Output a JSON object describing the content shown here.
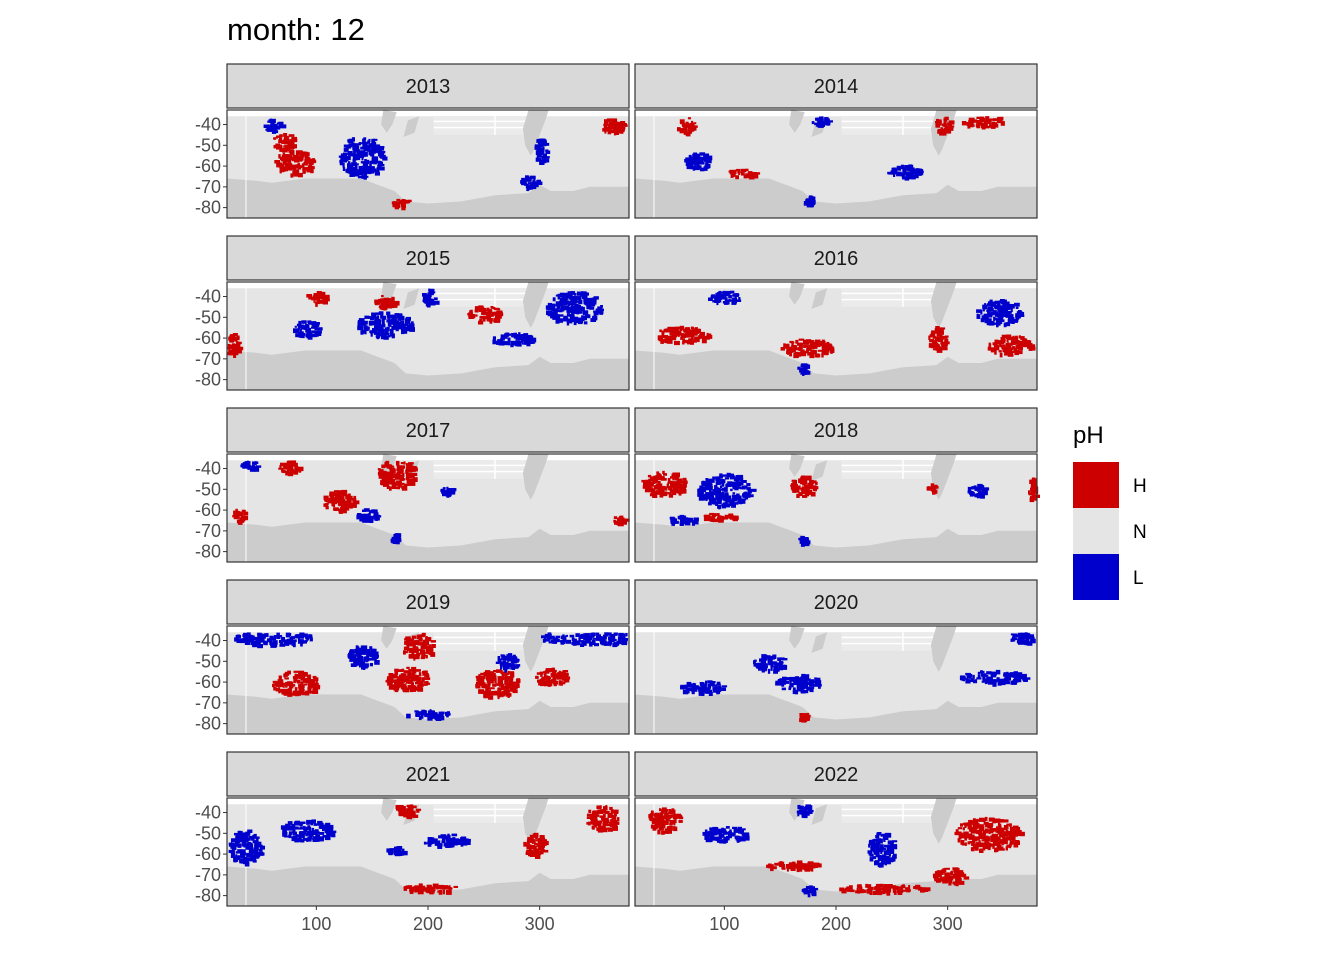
{
  "chart_data": {
    "type": "heatmap",
    "title": "month: 12",
    "facet_variable": "year",
    "facets": [
      "2013",
      "2014",
      "2015",
      "2016",
      "2017",
      "2018",
      "2019",
      "2020",
      "2021",
      "2022"
    ],
    "x_ticks": [
      100,
      200,
      300
    ],
    "x_tick_labels": [
      "100",
      "200",
      "300"
    ],
    "xlim": [
      20,
      380
    ],
    "y_ticks": [
      -40,
      -50,
      -60,
      -70,
      -80
    ],
    "y_tick_labels": [
      "-40",
      "-50",
      "-60",
      "-70",
      "-80"
    ],
    "ylim": [
      -85,
      -33
    ],
    "xlabel": "",
    "ylabel": "",
    "legend": {
      "title": "pH",
      "position": "right",
      "entries": [
        {
          "label": "H",
          "color": "#cc0000"
        },
        {
          "label": "N",
          "color": "#e5e5e5"
        },
        {
          "label": "L",
          "color": "#0000cc"
        }
      ]
    },
    "colors": {
      "land": "#cccccc",
      "normal": "#e5e5e5",
      "high": "#cc0000",
      "low": "#0000cc",
      "strip_fill": "#d9d9d9",
      "strip_border": "#333333"
    },
    "anomaly_regions": {
      "2013": [
        {
          "cls": "H",
          "lon": 80,
          "lat": -58,
          "rlon": 18,
          "rlat": 6
        },
        {
          "cls": "H",
          "lon": 70,
          "lat": -48,
          "rlon": 10,
          "rlat": 4
        },
        {
          "cls": "H",
          "lon": 175,
          "lat": -77,
          "rlon": 8,
          "rlat": 2
        },
        {
          "cls": "H",
          "lon": 365,
          "lat": -40,
          "rlon": 10,
          "rlat": 4
        },
        {
          "cls": "L",
          "lon": 140,
          "lat": -55,
          "rlon": 20,
          "rlat": 10
        },
        {
          "cls": "L",
          "lon": 300,
          "lat": -52,
          "rlon": 6,
          "rlat": 6
        },
        {
          "cls": "L",
          "lon": 290,
          "lat": -67,
          "rlon": 8,
          "rlat": 3
        },
        {
          "cls": "L",
          "lon": 60,
          "lat": -40,
          "rlon": 8,
          "rlat": 3
        }
      ],
      "2014": [
        {
          "cls": "H",
          "lon": 65,
          "lat": -40,
          "rlon": 8,
          "rlat": 4
        },
        {
          "cls": "H",
          "lon": 295,
          "lat": -40,
          "rlon": 8,
          "rlat": 4
        },
        {
          "cls": "H",
          "lon": 330,
          "lat": -38,
          "rlon": 18,
          "rlat": 3
        },
        {
          "cls": "H",
          "lon": 115,
          "lat": -63,
          "rlon": 14,
          "rlat": 2
        },
        {
          "cls": "L",
          "lon": 75,
          "lat": -57,
          "rlon": 12,
          "rlat": 4
        },
        {
          "cls": "L",
          "lon": 185,
          "lat": -38,
          "rlon": 8,
          "rlat": 2
        },
        {
          "cls": "L",
          "lon": 175,
          "lat": -76,
          "rlon": 5,
          "rlat": 2
        },
        {
          "cls": "L",
          "lon": 260,
          "lat": -62,
          "rlon": 15,
          "rlat": 3
        }
      ],
      "2015": [
        {
          "cls": "H",
          "lon": 250,
          "lat": -48,
          "rlon": 15,
          "rlat": 4
        },
        {
          "cls": "H",
          "lon": 25,
          "lat": -63,
          "rlon": 6,
          "rlat": 6
        },
        {
          "cls": "H",
          "lon": 100,
          "lat": -40,
          "rlon": 10,
          "rlat": 3
        },
        {
          "cls": "H",
          "lon": 160,
          "lat": -42,
          "rlon": 10,
          "rlat": 3
        },
        {
          "cls": "L",
          "lon": 160,
          "lat": -53,
          "rlon": 25,
          "rlat": 6
        },
        {
          "cls": "L",
          "lon": 200,
          "lat": -40,
          "rlon": 6,
          "rlat": 4
        },
        {
          "cls": "L",
          "lon": 275,
          "lat": -60,
          "rlon": 18,
          "rlat": 3
        },
        {
          "cls": "L",
          "lon": 330,
          "lat": -45,
          "rlon": 25,
          "rlat": 8
        },
        {
          "cls": "L",
          "lon": 90,
          "lat": -55,
          "rlon": 12,
          "rlat": 4
        }
      ],
      "2016": [
        {
          "cls": "H",
          "lon": 60,
          "lat": -58,
          "rlon": 25,
          "rlat": 4
        },
        {
          "cls": "H",
          "lon": 175,
          "lat": -64,
          "rlon": 25,
          "rlat": 4
        },
        {
          "cls": "H",
          "lon": 355,
          "lat": -63,
          "rlon": 20,
          "rlat": 5
        },
        {
          "cls": "H",
          "lon": 290,
          "lat": -60,
          "rlon": 8,
          "rlat": 6
        },
        {
          "cls": "L",
          "lon": 345,
          "lat": -47,
          "rlon": 20,
          "rlat": 6
        },
        {
          "cls": "L",
          "lon": 170,
          "lat": -74,
          "rlon": 5,
          "rlat": 2
        },
        {
          "cls": "L",
          "lon": 100,
          "lat": -40,
          "rlon": 15,
          "rlat": 3
        }
      ],
      "2017": [
        {
          "cls": "H",
          "lon": 170,
          "lat": -42,
          "rlon": 18,
          "rlat": 7
        },
        {
          "cls": "H",
          "lon": 75,
          "lat": -39,
          "rlon": 10,
          "rlat": 3
        },
        {
          "cls": "H",
          "lon": 30,
          "lat": -62,
          "rlon": 6,
          "rlat": 3
        },
        {
          "cls": "H",
          "lon": 370,
          "lat": -64,
          "rlon": 6,
          "rlat": 2
        },
        {
          "cls": "H",
          "lon": 120,
          "lat": -55,
          "rlon": 15,
          "rlat": 5
        },
        {
          "cls": "L",
          "lon": 40,
          "lat": -38,
          "rlon": 8,
          "rlat": 2
        },
        {
          "cls": "L",
          "lon": 215,
          "lat": -50,
          "rlon": 6,
          "rlat": 2
        },
        {
          "cls": "L",
          "lon": 145,
          "lat": -62,
          "rlon": 10,
          "rlat": 3
        },
        {
          "cls": "L",
          "lon": 170,
          "lat": -73,
          "rlon": 4,
          "rlat": 2
        }
      ],
      "2018": [
        {
          "cls": "H",
          "lon": 45,
          "lat": -47,
          "rlon": 20,
          "rlat": 6
        },
        {
          "cls": "H",
          "lon": 170,
          "lat": -48,
          "rlon": 12,
          "rlat": 5
        },
        {
          "cls": "H",
          "lon": 95,
          "lat": -63,
          "rlon": 15,
          "rlat": 2
        },
        {
          "cls": "H",
          "lon": 285,
          "lat": -49,
          "rlon": 4,
          "rlat": 2
        },
        {
          "cls": "H",
          "lon": 375,
          "lat": -50,
          "rlon": 4,
          "rlat": 6
        },
        {
          "cls": "L",
          "lon": 100,
          "lat": -50,
          "rlon": 25,
          "rlat": 8
        },
        {
          "cls": "L",
          "lon": 60,
          "lat": -64,
          "rlon": 15,
          "rlat": 2
        },
        {
          "cls": "L",
          "lon": 170,
          "lat": -74,
          "rlon": 4,
          "rlat": 2
        },
        {
          "cls": "L",
          "lon": 325,
          "lat": -50,
          "rlon": 8,
          "rlat": 3
        }
      ],
      "2019": [
        {
          "cls": "H",
          "lon": 190,
          "lat": -42,
          "rlon": 15,
          "rlat": 6
        },
        {
          "cls": "H",
          "lon": 180,
          "lat": -58,
          "rlon": 20,
          "rlat": 6
        },
        {
          "cls": "H",
          "lon": 80,
          "lat": -60,
          "rlon": 20,
          "rlat": 6
        },
        {
          "cls": "H",
          "lon": 260,
          "lat": -60,
          "rlon": 20,
          "rlat": 7
        },
        {
          "cls": "H",
          "lon": 310,
          "lat": -57,
          "rlon": 15,
          "rlat": 4
        },
        {
          "cls": "L",
          "lon": 60,
          "lat": -38,
          "rlon": 35,
          "rlat": 4
        },
        {
          "cls": "L",
          "lon": 340,
          "lat": -38,
          "rlon": 40,
          "rlat": 4
        },
        {
          "cls": "L",
          "lon": 140,
          "lat": -47,
          "rlon": 15,
          "rlat": 5
        },
        {
          "cls": "L",
          "lon": 200,
          "lat": -75,
          "rlon": 20,
          "rlat": 2
        },
        {
          "cls": "L",
          "lon": 270,
          "lat": -50,
          "rlon": 10,
          "rlat": 4
        }
      ],
      "2020": [
        {
          "cls": "H",
          "lon": 170,
          "lat": -76,
          "rlon": 5,
          "rlat": 2
        },
        {
          "cls": "L",
          "lon": 80,
          "lat": -62,
          "rlon": 20,
          "rlat": 3
        },
        {
          "cls": "L",
          "lon": 165,
          "lat": -60,
          "rlon": 20,
          "rlat": 4
        },
        {
          "cls": "L",
          "lon": 340,
          "lat": -57,
          "rlon": 30,
          "rlat": 3
        },
        {
          "cls": "L",
          "lon": 365,
          "lat": -38,
          "rlon": 10,
          "rlat": 3
        },
        {
          "cls": "L",
          "lon": 140,
          "lat": -50,
          "rlon": 15,
          "rlat": 4
        }
      ],
      "2021": [
        {
          "cls": "H",
          "lon": 180,
          "lat": -38,
          "rlon": 10,
          "rlat": 4
        },
        {
          "cls": "H",
          "lon": 200,
          "lat": -76,
          "rlon": 25,
          "rlat": 2
        },
        {
          "cls": "H",
          "lon": 355,
          "lat": -42,
          "rlon": 15,
          "rlat": 6
        },
        {
          "cls": "H",
          "lon": 295,
          "lat": -55,
          "rlon": 10,
          "rlat": 6
        },
        {
          "cls": "L",
          "lon": 35,
          "lat": -56,
          "rlon": 15,
          "rlat": 8
        },
        {
          "cls": "L",
          "lon": 215,
          "lat": -53,
          "rlon": 20,
          "rlat": 3
        },
        {
          "cls": "L",
          "lon": 90,
          "lat": -48,
          "rlon": 25,
          "rlat": 5
        },
        {
          "cls": "L",
          "lon": 170,
          "lat": -58,
          "rlon": 8,
          "rlat": 2
        }
      ],
      "2022": [
        {
          "cls": "H",
          "lon": 335,
          "lat": -50,
          "rlon": 30,
          "rlat": 8
        },
        {
          "cls": "H",
          "lon": 240,
          "lat": -76,
          "rlon": 40,
          "rlat": 2
        },
        {
          "cls": "H",
          "lon": 300,
          "lat": -70,
          "rlon": 15,
          "rlat": 4
        },
        {
          "cls": "H",
          "lon": 45,
          "lat": -43,
          "rlon": 15,
          "rlat": 6
        },
        {
          "cls": "H",
          "lon": 160,
          "lat": -65,
          "rlon": 25,
          "rlat": 2
        },
        {
          "cls": "L",
          "lon": 240,
          "lat": -57,
          "rlon": 12,
          "rlat": 8
        },
        {
          "cls": "L",
          "lon": 175,
          "lat": -77,
          "rlon": 6,
          "rlat": 2
        },
        {
          "cls": "L",
          "lon": 100,
          "lat": -50,
          "rlon": 20,
          "rlat": 4
        },
        {
          "cls": "L",
          "lon": 170,
          "lat": -38,
          "rlon": 6,
          "rlat": 3
        }
      ]
    }
  }
}
